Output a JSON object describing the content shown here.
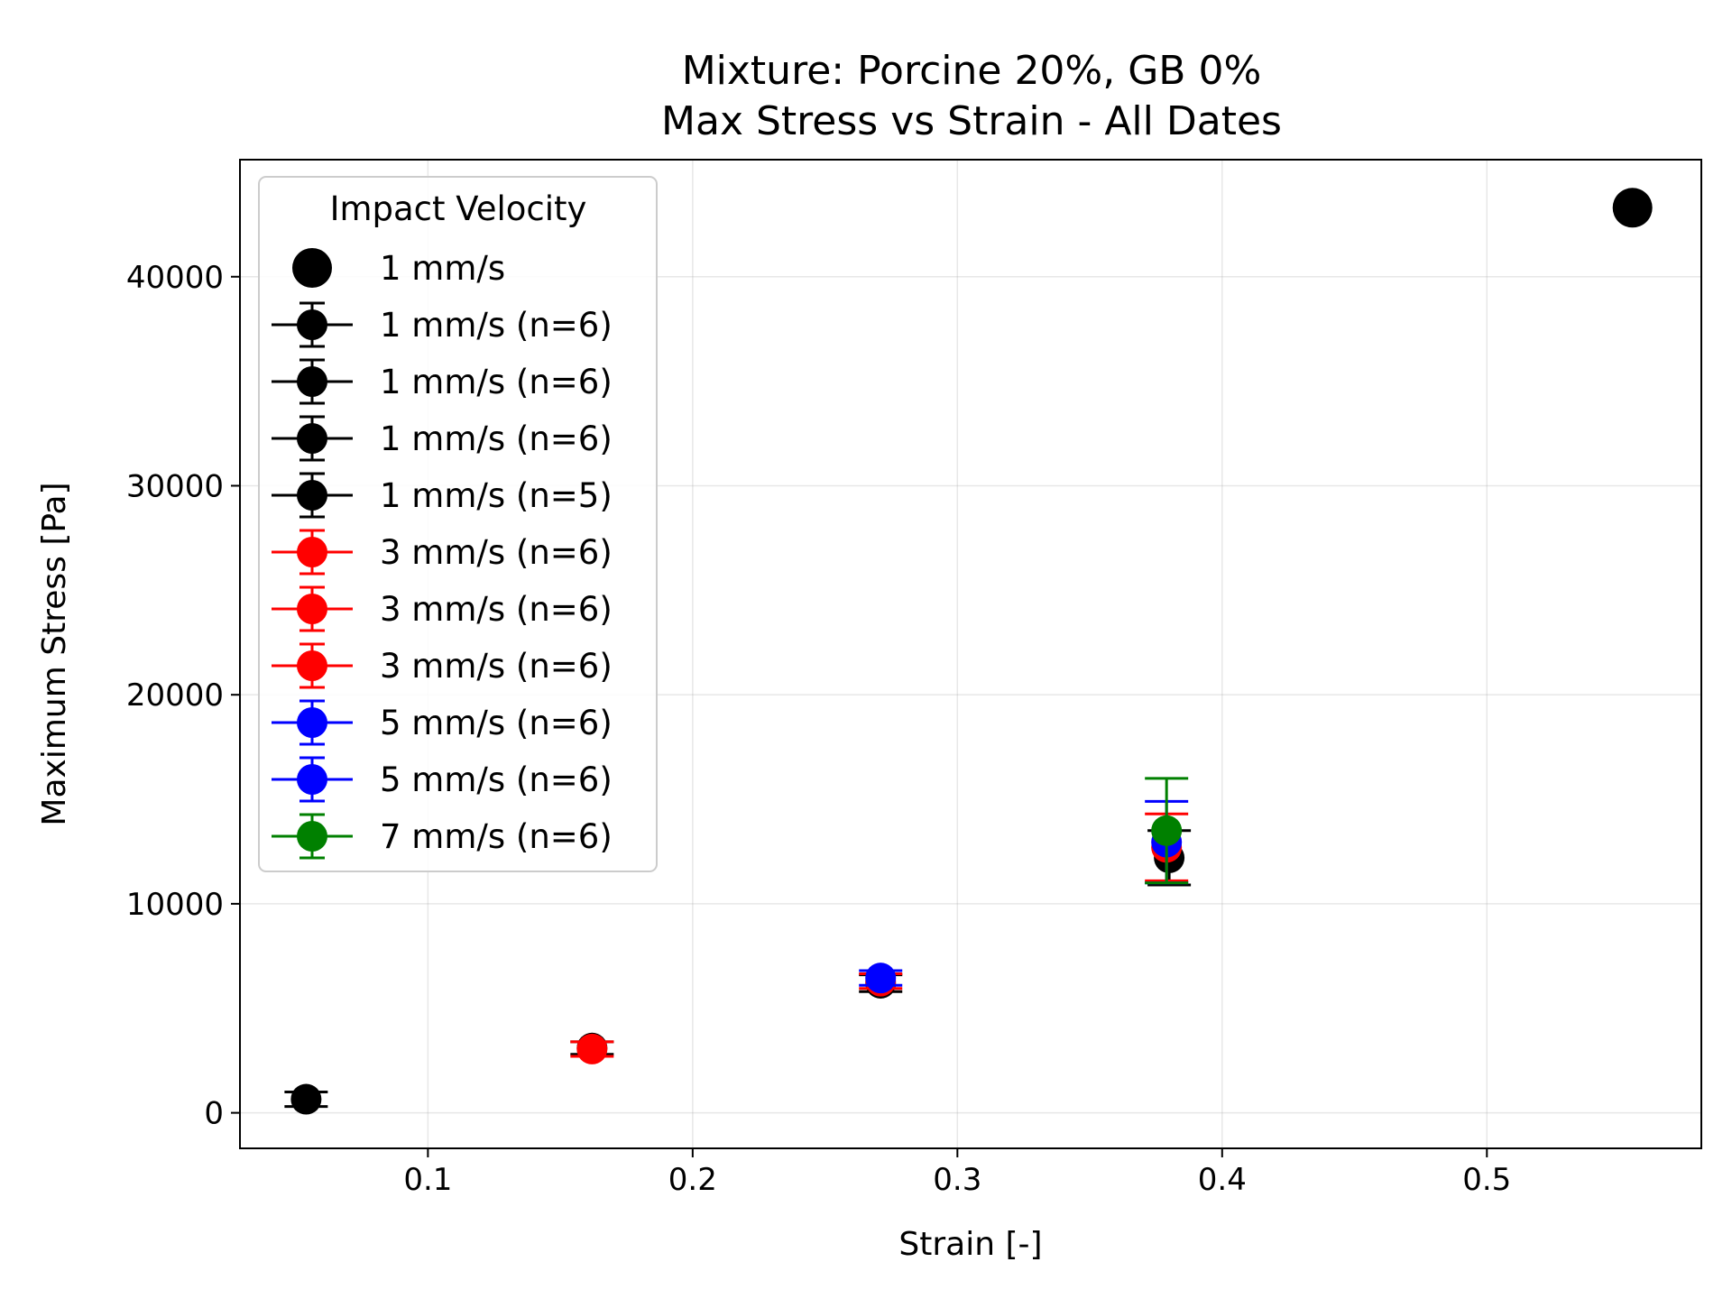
{
  "chart_data": {
    "type": "scatter",
    "title": "Mixture: Porcine 20%, GB 0%",
    "subtitle": "Max Stress vs Strain - All Dates",
    "xlabel": "Strain [-]",
    "ylabel": "Maximum Stress [Pa]",
    "xlim": [
      0.029,
      0.581
    ],
    "ylim": [
      -1700,
      45600
    ],
    "xticks": [
      0.1,
      0.2,
      0.3,
      0.4,
      0.5
    ],
    "xtick_labels": [
      "0.1",
      "0.2",
      "0.3",
      "0.4",
      "0.5"
    ],
    "yticks": [
      0,
      10000,
      20000,
      30000,
      40000
    ],
    "ytick_labels": [
      "0",
      "10000",
      "20000",
      "30000",
      "40000"
    ],
    "grid": true,
    "legend": {
      "title": "Impact Velocity",
      "placement": "top-left"
    },
    "colors": {
      "1 mm/s": "#000000",
      "3 mm/s": "#ff0000",
      "5 mm/s": "#0000ff",
      "7 mm/s": "#008000"
    },
    "series": [
      {
        "name": "1 mm/s",
        "color": "#000000",
        "errorbar": false,
        "points": [
          {
            "x": 0.555,
            "y": 43300,
            "yerr": 0
          }
        ]
      },
      {
        "name": "1 mm/s (n=6)",
        "color": "#000000",
        "errorbar": true,
        "points": [
          {
            "x": 0.054,
            "y": 650,
            "yerr": 350
          }
        ]
      },
      {
        "name": "1 mm/s (n=6)",
        "color": "#000000",
        "errorbar": true,
        "points": [
          {
            "x": 0.162,
            "y": 3100,
            "yerr": 300
          }
        ]
      },
      {
        "name": "1 mm/s (n=6)",
        "color": "#000000",
        "errorbar": true,
        "points": [
          {
            "x": 0.271,
            "y": 6200,
            "yerr": 400
          }
        ]
      },
      {
        "name": "1 mm/s (n=5)",
        "color": "#000000",
        "errorbar": true,
        "points": [
          {
            "x": 0.38,
            "y": 12200,
            "yerr": 1300
          }
        ]
      },
      {
        "name": "3 mm/s (n=6)",
        "color": "#ff0000",
        "errorbar": true,
        "points": [
          {
            "x": 0.162,
            "y": 3050,
            "yerr": 350
          }
        ]
      },
      {
        "name": "3 mm/s (n=6)",
        "color": "#ff0000",
        "errorbar": true,
        "points": [
          {
            "x": 0.271,
            "y": 6300,
            "yerr": 350
          }
        ]
      },
      {
        "name": "3 mm/s (n=6)",
        "color": "#ff0000",
        "errorbar": true,
        "points": [
          {
            "x": 0.379,
            "y": 12700,
            "yerr": 1600
          }
        ]
      },
      {
        "name": "5 mm/s (n=6)",
        "color": "#0000ff",
        "errorbar": true,
        "points": [
          {
            "x": 0.271,
            "y": 6450,
            "yerr": 350
          }
        ]
      },
      {
        "name": "5 mm/s (n=6)",
        "color": "#0000ff",
        "errorbar": true,
        "points": [
          {
            "x": 0.379,
            "y": 12950,
            "yerr": 1950
          }
        ]
      },
      {
        "name": "7 mm/s (n=6)",
        "color": "#008000",
        "errorbar": true,
        "points": [
          {
            "x": 0.379,
            "y": 13500,
            "yerr": 2500
          }
        ]
      }
    ]
  }
}
